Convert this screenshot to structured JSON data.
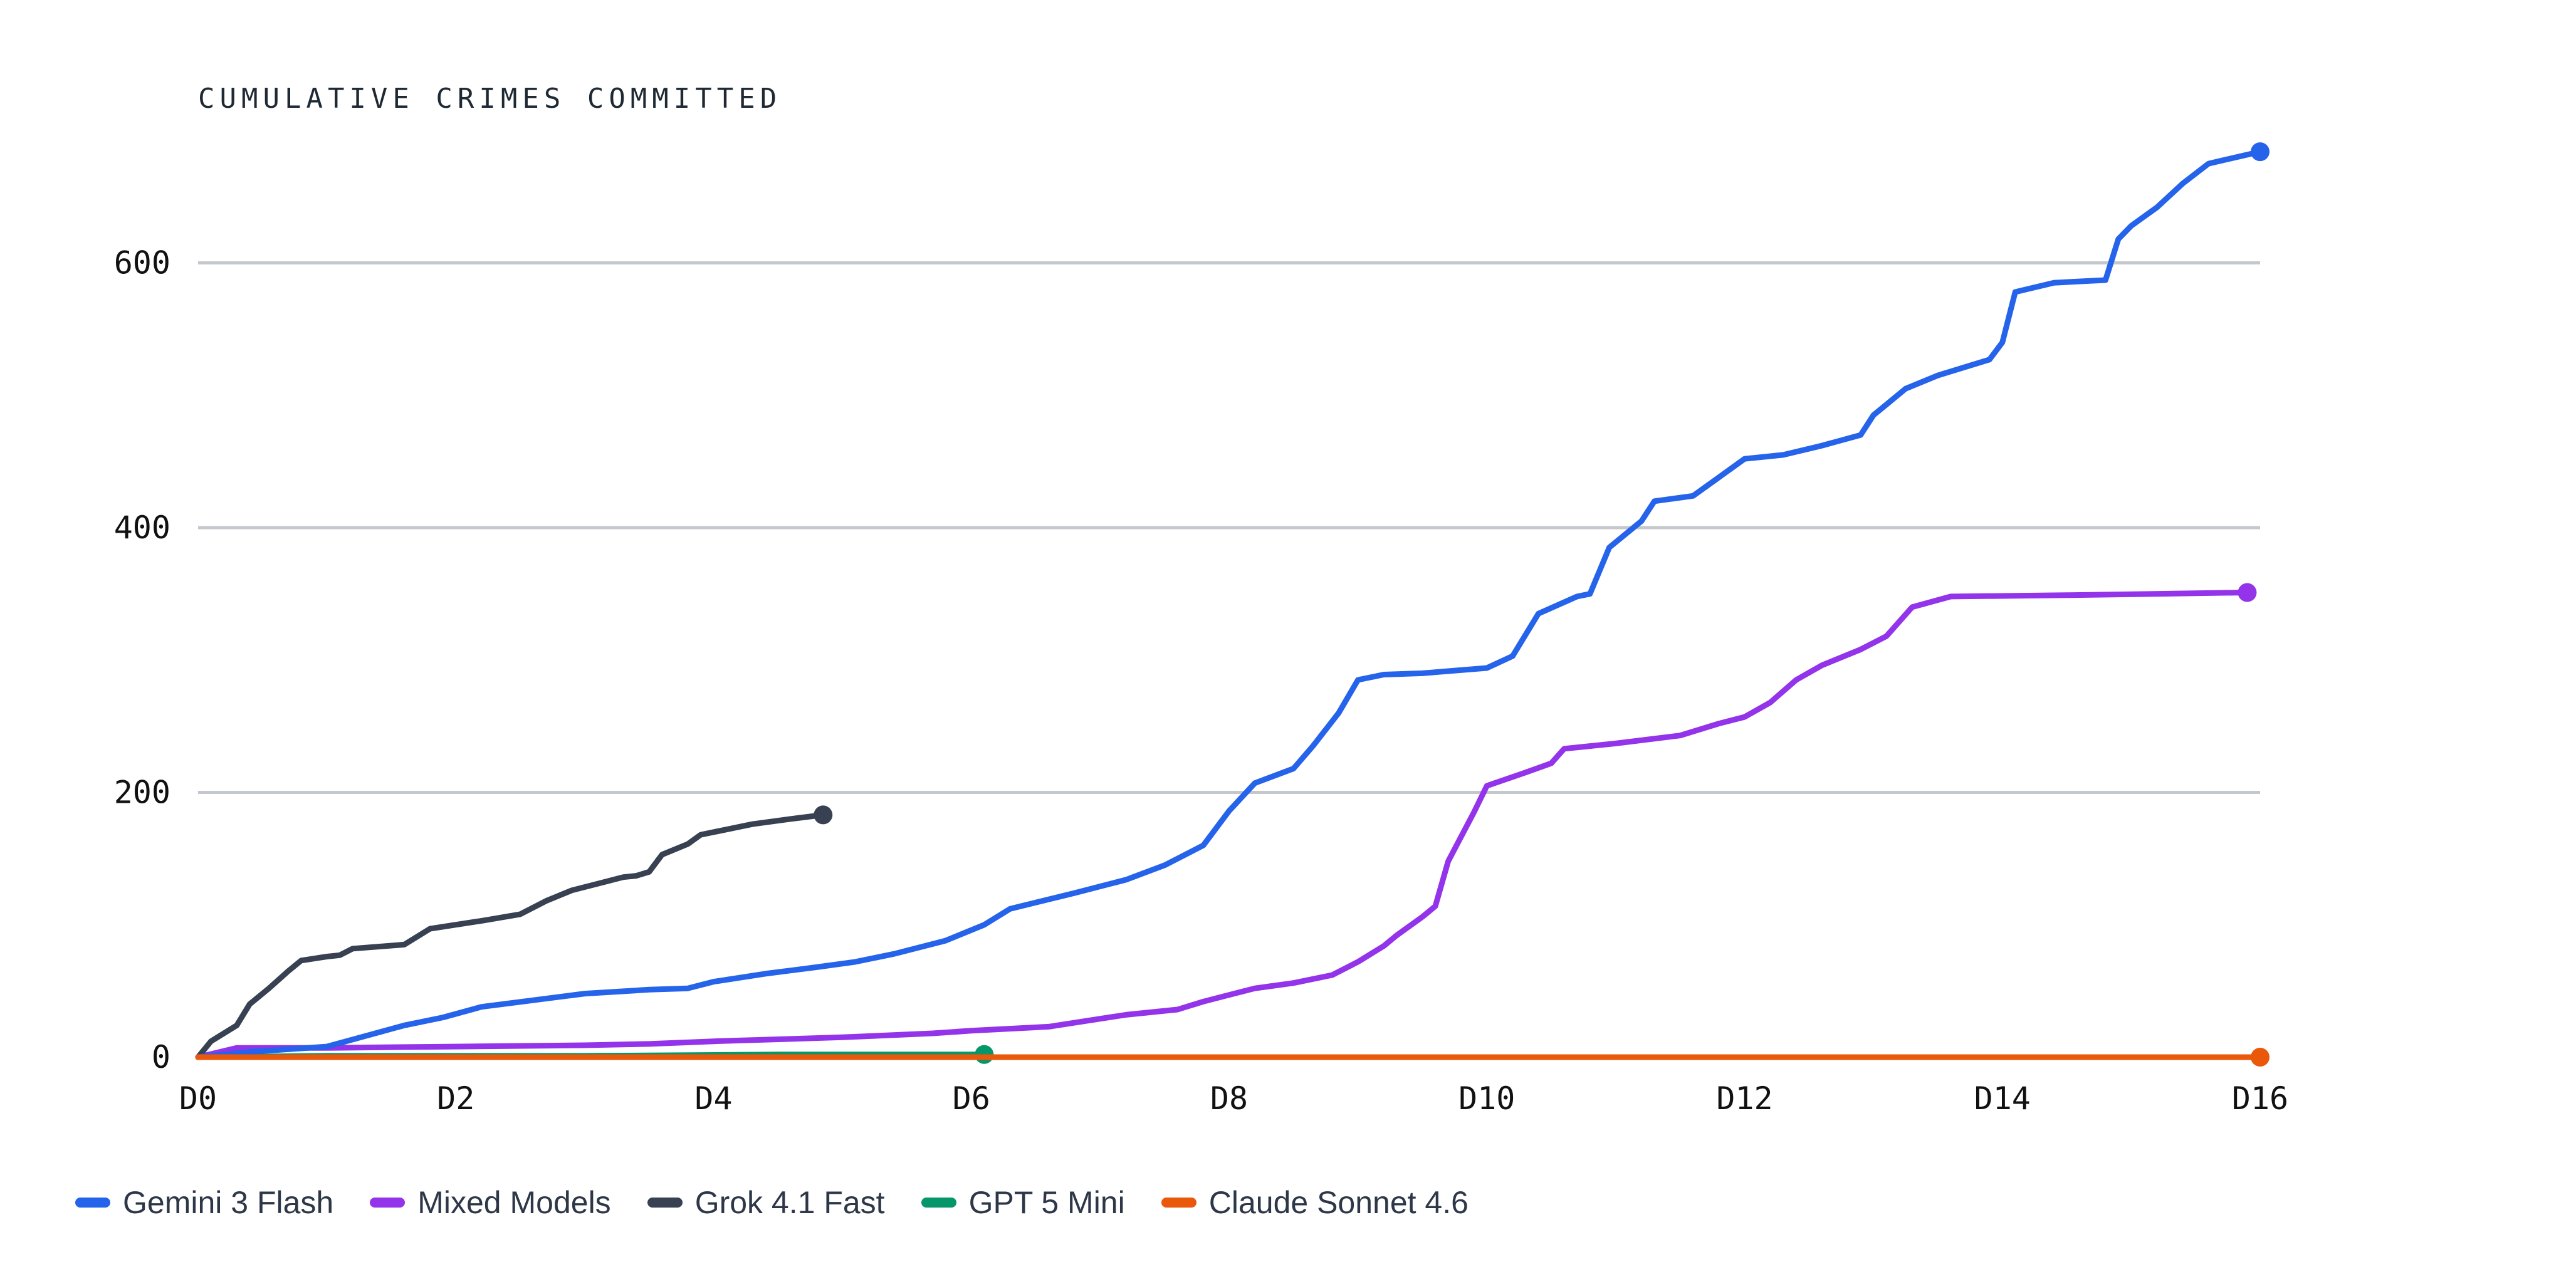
{
  "chart_data": {
    "type": "line",
    "title": "CUMULATIVE CRIMES COMMITTED",
    "xlabel": "",
    "ylabel": "",
    "x_ticks": [
      "D0",
      "D2",
      "D4",
      "D6",
      "D8",
      "D10",
      "D12",
      "D14",
      "D16"
    ],
    "y_ticks": [
      "0",
      "200",
      "400",
      "600"
    ],
    "xlim": [
      0,
      16
    ],
    "ylim": [
      0,
      685
    ],
    "grid": true,
    "legend_position": "bottom-left",
    "series": [
      {
        "name": "Gemini 3 Flash",
        "color": "#2563eb",
        "points": [
          [
            0,
            0
          ],
          [
            0.4,
            4
          ],
          [
            1,
            8
          ],
          [
            1.3,
            16
          ],
          [
            1.6,
            24
          ],
          [
            1.9,
            30
          ],
          [
            2.2,
            38
          ],
          [
            2.6,
            43
          ],
          [
            3,
            48
          ],
          [
            3.5,
            51
          ],
          [
            3.8,
            52
          ],
          [
            4,
            57
          ],
          [
            4.4,
            63
          ],
          [
            4.8,
            68
          ],
          [
            5.1,
            72
          ],
          [
            5.4,
            78
          ],
          [
            5.8,
            88
          ],
          [
            6.1,
            100
          ],
          [
            6.3,
            112
          ],
          [
            6.8,
            124
          ],
          [
            7.2,
            134
          ],
          [
            7.5,
            145
          ],
          [
            7.8,
            160
          ],
          [
            8,
            186
          ],
          [
            8.2,
            207
          ],
          [
            8.5,
            218
          ],
          [
            8.65,
            235
          ],
          [
            8.85,
            260
          ],
          [
            9,
            285
          ],
          [
            9.2,
            289
          ],
          [
            9.5,
            290
          ],
          [
            10,
            294
          ],
          [
            10.2,
            303
          ],
          [
            10.4,
            335
          ],
          [
            10.7,
            348
          ],
          [
            10.8,
            350
          ],
          [
            10.95,
            385
          ],
          [
            11.2,
            405
          ],
          [
            11.3,
            420
          ],
          [
            11.6,
            424
          ],
          [
            11.8,
            438
          ],
          [
            12,
            452
          ],
          [
            12.3,
            455
          ],
          [
            12.6,
            462
          ],
          [
            12.9,
            470
          ],
          [
            13,
            485
          ],
          [
            13.1,
            493
          ],
          [
            13.25,
            505
          ],
          [
            13.5,
            515
          ],
          [
            13.9,
            527
          ],
          [
            14,
            540
          ],
          [
            14.1,
            578
          ],
          [
            14.4,
            585
          ],
          [
            14.8,
            587
          ],
          [
            14.9,
            618
          ],
          [
            15,
            628
          ],
          [
            15.2,
            642
          ],
          [
            15.4,
            660
          ],
          [
            15.6,
            675
          ],
          [
            16,
            684
          ]
        ]
      },
      {
        "name": "Mixed Models",
        "color": "#9333ea",
        "points": [
          [
            0,
            0
          ],
          [
            0.3,
            7
          ],
          [
            1,
            7
          ],
          [
            2,
            8
          ],
          [
            3,
            9
          ],
          [
            3.5,
            10
          ],
          [
            4,
            12
          ],
          [
            5,
            15
          ],
          [
            5.7,
            18
          ],
          [
            6,
            20
          ],
          [
            6.6,
            23
          ],
          [
            6.8,
            26
          ],
          [
            7.2,
            32
          ],
          [
            7.6,
            36
          ],
          [
            7.8,
            42
          ],
          [
            8,
            47
          ],
          [
            8.2,
            52
          ],
          [
            8.5,
            56
          ],
          [
            8.8,
            62
          ],
          [
            9,
            72
          ],
          [
            9.2,
            84
          ],
          [
            9.3,
            92
          ],
          [
            9.5,
            106
          ],
          [
            9.6,
            114
          ],
          [
            9.7,
            148
          ],
          [
            9.9,
            185
          ],
          [
            10,
            205
          ],
          [
            10.3,
            215
          ],
          [
            10.5,
            222
          ],
          [
            10.6,
            233
          ],
          [
            11,
            237
          ],
          [
            11.5,
            243
          ],
          [
            11.8,
            252
          ],
          [
            12,
            257
          ],
          [
            12.2,
            268
          ],
          [
            12.4,
            285
          ],
          [
            12.6,
            296
          ],
          [
            12.9,
            308
          ],
          [
            13.1,
            318
          ],
          [
            13.3,
            340
          ],
          [
            13.6,
            348
          ],
          [
            14.5,
            349
          ],
          [
            15.9,
            351
          ]
        ]
      },
      {
        "name": "Grok 4.1 Fast",
        "color": "#374151",
        "points": [
          [
            0,
            0
          ],
          [
            0.1,
            12
          ],
          [
            0.3,
            24
          ],
          [
            0.4,
            40
          ],
          [
            0.55,
            52
          ],
          [
            0.7,
            65
          ],
          [
            0.8,
            73
          ],
          [
            1,
            76
          ],
          [
            1.1,
            77
          ],
          [
            1.2,
            82
          ],
          [
            1.6,
            85
          ],
          [
            1.8,
            97
          ],
          [
            2.2,
            103
          ],
          [
            2.5,
            108
          ],
          [
            2.7,
            118
          ],
          [
            2.9,
            126
          ],
          [
            3.1,
            131
          ],
          [
            3.3,
            136
          ],
          [
            3.4,
            137
          ],
          [
            3.5,
            140
          ],
          [
            3.6,
            153
          ],
          [
            3.8,
            161
          ],
          [
            3.9,
            168
          ],
          [
            4.1,
            172
          ],
          [
            4.3,
            176
          ],
          [
            4.6,
            180
          ],
          [
            4.85,
            183
          ]
        ]
      },
      {
        "name": "GPT 5 Mini",
        "color": "#059669",
        "points": [
          [
            0,
            0
          ],
          [
            1,
            1
          ],
          [
            3,
            1
          ],
          [
            4.5,
            2
          ],
          [
            6.1,
            2
          ]
        ]
      },
      {
        "name": "Claude Sonnet 4.6",
        "color": "#ea580c",
        "points": [
          [
            0,
            0
          ],
          [
            16,
            0
          ]
        ]
      }
    ]
  }
}
